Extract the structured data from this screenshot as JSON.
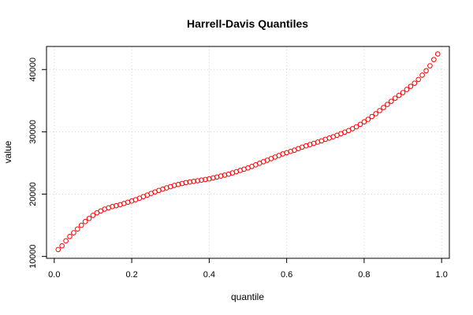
{
  "chart_data": {
    "type": "scatter",
    "title": "Harrell-Davis Quantiles",
    "xlabel": "quantile",
    "ylabel": "value",
    "xlim": [
      -0.02,
      1.02
    ],
    "ylim": [
      9700,
      43700
    ],
    "x_ticks": [
      0.0,
      0.2,
      0.4,
      0.6,
      0.8,
      1.0
    ],
    "x_tick_labels": [
      "0.0",
      "0.2",
      "0.4",
      "0.6",
      "0.8",
      "1.0"
    ],
    "y_ticks": [
      10000,
      20000,
      30000,
      40000
    ],
    "y_tick_labels": [
      "10000",
      "20000",
      "30000",
      "40000"
    ],
    "grid": true,
    "marker": "open-circle",
    "point_color": "#ff0000",
    "x": [
      0.01,
      0.02,
      0.03,
      0.04,
      0.05,
      0.06,
      0.07,
      0.08,
      0.09,
      0.1,
      0.11,
      0.12,
      0.13,
      0.14,
      0.15,
      0.16,
      0.17,
      0.18,
      0.19,
      0.2,
      0.21,
      0.22,
      0.23,
      0.24,
      0.25,
      0.26,
      0.27,
      0.28,
      0.29,
      0.3,
      0.31,
      0.32,
      0.33,
      0.34,
      0.35,
      0.36,
      0.37,
      0.38,
      0.39,
      0.4,
      0.41,
      0.42,
      0.43,
      0.44,
      0.45,
      0.46,
      0.47,
      0.48,
      0.49,
      0.5,
      0.51,
      0.52,
      0.53,
      0.54,
      0.55,
      0.56,
      0.57,
      0.58,
      0.59,
      0.6,
      0.61,
      0.62,
      0.63,
      0.64,
      0.65,
      0.66,
      0.67,
      0.68,
      0.69,
      0.7,
      0.71,
      0.72,
      0.73,
      0.74,
      0.75,
      0.76,
      0.77,
      0.78,
      0.79,
      0.8,
      0.81,
      0.82,
      0.83,
      0.84,
      0.85,
      0.86,
      0.87,
      0.88,
      0.89,
      0.9,
      0.91,
      0.92,
      0.93,
      0.94,
      0.95,
      0.96,
      0.97,
      0.98,
      0.99
    ],
    "y": [
      11100,
      11700,
      12500,
      13200,
      13800,
      14400,
      15000,
      15600,
      16100,
      16600,
      17000,
      17300,
      17600,
      17800,
      18000,
      18150,
      18300,
      18500,
      18700,
      18900,
      19100,
      19350,
      19600,
      19850,
      20100,
      20350,
      20600,
      20800,
      21000,
      21200,
      21400,
      21550,
      21700,
      21850,
      21950,
      22050,
      22150,
      22250,
      22350,
      22450,
      22600,
      22750,
      22900,
      23050,
      23200,
      23400,
      23600,
      23800,
      24000,
      24200,
      24450,
      24700,
      24950,
      25200,
      25450,
      25700,
      25950,
      26200,
      26450,
      26650,
      26850,
      27050,
      27300,
      27550,
      27750,
      27950,
      28150,
      28350,
      28550,
      28800,
      29000,
      29200,
      29450,
      29700,
      29950,
      30200,
      30500,
      30800,
      31200,
      31600,
      32000,
      32450,
      32900,
      33400,
      33900,
      34400,
      34900,
      35400,
      35850,
      36300,
      36800,
      37300,
      37800,
      38400,
      39100,
      39800,
      40600,
      41600,
      42500
    ]
  }
}
